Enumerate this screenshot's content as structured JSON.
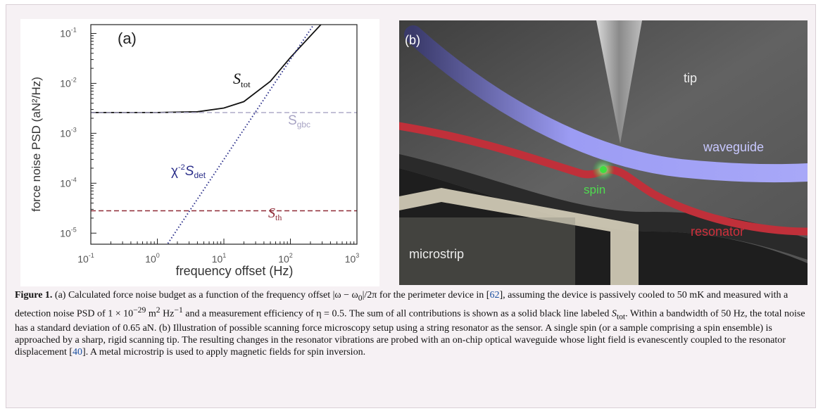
{
  "panel_a": {
    "label": "(a)",
    "y_axis_label": "force noise PSD (aN²/Hz)",
    "x_axis_label": "frequency offset (Hz)",
    "x_ticks": [
      {
        "base": "10",
        "exp": "-1",
        "value": 0.1
      },
      {
        "base": "10",
        "exp": "0",
        "value": 1
      },
      {
        "base": "10",
        "exp": "1",
        "value": 10
      },
      {
        "base": "10",
        "exp": "2",
        "value": 100
      },
      {
        "base": "10",
        "exp": "3",
        "value": 1000
      }
    ],
    "y_ticks": [
      {
        "base": "10",
        "exp": "-1",
        "value": 0.1
      },
      {
        "base": "10",
        "exp": "-2",
        "value": 0.01
      },
      {
        "base": "10",
        "exp": "-3",
        "value": 0.001
      },
      {
        "base": "10",
        "exp": "-4",
        "value": 0.0001
      },
      {
        "base": "10",
        "exp": "-5",
        "value": 1e-05
      }
    ],
    "labels": {
      "s_tot": {
        "main": "S",
        "sub": "tot"
      },
      "s_gbc": {
        "main": "S",
        "sub": "gbc"
      },
      "s_det": {
        "prefix": "χ",
        "exp": "-2",
        "main": "S",
        "sub": "det"
      },
      "s_th": {
        "main": "S",
        "sub": "th"
      }
    },
    "colors": {
      "s_tot": "#111111",
      "s_gbc": "#a8a4c4",
      "s_det": "#2b2f8a",
      "s_th": "#8f2a36"
    }
  },
  "chart_data": {
    "type": "line",
    "x_scale": "log",
    "y_scale": "log",
    "xlim": [
      0.1,
      1000
    ],
    "ylim": [
      6e-06,
      0.15
    ],
    "xlabel": "frequency offset (Hz)",
    "ylabel": "force noise PSD (aN²/Hz)",
    "series": [
      {
        "name": "S_tot",
        "style": "solid",
        "x": [
          0.1,
          1,
          4,
          10,
          20,
          50,
          100,
          300,
          1000
        ],
        "y": [
          0.0026,
          0.0026,
          0.0027,
          0.0032,
          0.0043,
          0.011,
          0.033,
          0.16,
          1.0
        ]
      },
      {
        "name": "S_gbc",
        "style": "dashed",
        "x": [
          0.1,
          1000
        ],
        "y": [
          0.0026,
          0.0026
        ]
      },
      {
        "name": "χ^-2 S_det",
        "style": "dotted",
        "x": [
          1,
          10,
          100,
          1000
        ],
        "y": [
          3e-06,
          0.0003,
          0.03,
          3
        ]
      },
      {
        "name": "S_th",
        "style": "dashed",
        "x": [
          0.1,
          1000
        ],
        "y": [
          2.8e-05,
          2.8e-05
        ]
      }
    ]
  },
  "panel_b": {
    "label": "(b)",
    "labels": {
      "tip": "tip",
      "waveguide": "waveguide",
      "spin": "spin",
      "resonator": "resonator",
      "microstrip": "microstrip"
    }
  },
  "caption": {
    "fig_label": "Figure 1.",
    "seg1": " (a) Calculated force noise budget as a function of the frequency offset |ω − ω",
    "seg1_sub": "0",
    "seg1b": "|/2π for the perimeter device in [",
    "ref1": "62",
    "seg2": "], assuming the device is passively cooled to 50 mK and measured with a detection noise PSD of 1 × 10",
    "exp1": "−29",
    "seg3": " m",
    "exp2": "2",
    "seg4": " Hz",
    "exp3": "−1",
    "seg5": " and a measurement efficiency of η = 0.5. The sum of all contributions is shown as a solid black line labeled ",
    "s_main": "S",
    "s_sub": "tot",
    "seg6": ". Within a bandwidth of 50 Hz, the total noise has a standard deviation of 0.65 aN. (b) Illustration of possible scanning force microscopy setup using a string resonator as the sensor. A single spin (or a sample comprising a spin ensemble) is approached by a sharp, rigid scanning tip. The resulting changes in the resonator vibrations are probed with an on-chip optical waveguide whose light field is evanescently coupled to the resonator displacement [",
    "ref2": "40",
    "seg7": "]. A metal microstrip is used to apply magnetic fields for spin inversion."
  }
}
